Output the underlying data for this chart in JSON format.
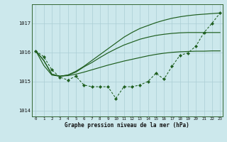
{
  "xlabel": "Graphe pression niveau de la mer (hPa)",
  "bg_color": "#cce8ec",
  "grid_color": "#aacdd4",
  "line_color": "#1e5e1e",
  "ylim": [
    1013.8,
    1017.65
  ],
  "xlim": [
    -0.5,
    23.3
  ],
  "yticks": [
    1014,
    1015,
    1016,
    1017
  ],
  "xticks": [
    0,
    1,
    2,
    3,
    4,
    5,
    6,
    7,
    8,
    9,
    10,
    11,
    12,
    13,
    14,
    15,
    16,
    17,
    18,
    19,
    20,
    21,
    22,
    23
  ],
  "main_line": [
    1016.05,
    1015.85,
    1015.4,
    1015.15,
    1015.05,
    1015.18,
    1014.88,
    1014.82,
    1014.82,
    1014.82,
    1014.42,
    1014.82,
    1014.82,
    1014.88,
    1015.0,
    1015.28,
    1015.08,
    1015.52,
    1015.9,
    1015.98,
    1016.22,
    1016.68,
    1017.0,
    1017.35
  ],
  "smooth_line1": [
    1016.05,
    1015.72,
    1015.25,
    1015.18,
    1015.2,
    1015.25,
    1015.32,
    1015.4,
    1015.48,
    1015.56,
    1015.63,
    1015.7,
    1015.76,
    1015.82,
    1015.88,
    1015.93,
    1015.97,
    1016.0,
    1016.02,
    1016.03,
    1016.04,
    1016.04,
    1016.05,
    1016.05
  ],
  "smooth_line2": [
    1016.05,
    1015.72,
    1015.25,
    1015.18,
    1015.22,
    1015.32,
    1015.5,
    1015.65,
    1015.82,
    1015.98,
    1016.12,
    1016.25,
    1016.35,
    1016.45,
    1016.52,
    1016.58,
    1016.62,
    1016.65,
    1016.67,
    1016.68,
    1016.68,
    1016.68,
    1016.68,
    1016.68
  ],
  "smooth_line3": [
    1016.05,
    1015.55,
    1015.22,
    1015.18,
    1015.22,
    1015.35,
    1015.52,
    1015.72,
    1015.92,
    1016.12,
    1016.32,
    1016.52,
    1016.68,
    1016.82,
    1016.92,
    1017.02,
    1017.1,
    1017.17,
    1017.22,
    1017.26,
    1017.29,
    1017.31,
    1017.33,
    1017.35
  ]
}
